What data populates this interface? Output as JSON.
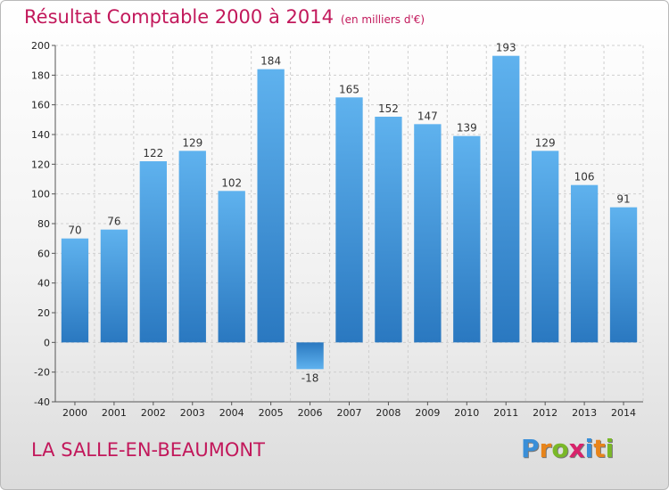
{
  "chart_data": {
    "type": "bar",
    "title": "Résultat Comptable 2000 à 2014",
    "subtitle": "(en milliers d'€)",
    "categories": [
      "2000",
      "2001",
      "2002",
      "2003",
      "2004",
      "2005",
      "2006",
      "2007",
      "2008",
      "2009",
      "2010",
      "2011",
      "2012",
      "2013",
      "2014"
    ],
    "values": [
      70,
      76,
      122,
      129,
      102,
      184,
      -18,
      165,
      152,
      147,
      139,
      193,
      129,
      106,
      91
    ],
    "value_labels": [
      "70",
      "76",
      "122",
      "129",
      "102",
      "184",
      "-18",
      "165",
      "152",
      "147",
      "139",
      "193",
      "129",
      "106",
      "91"
    ],
    "ylim": [
      -40,
      200
    ],
    "yticks": [
      "-40",
      "-20",
      "0",
      "20",
      "40",
      "60",
      "80",
      "100",
      "120",
      "140",
      "160",
      "180",
      "200"
    ],
    "grid": true,
    "bar_color": "#4a9fe0"
  },
  "footer": {
    "city": "LA SALLE-EN-BEAUMONT",
    "logo_letters": [
      "P",
      "r",
      "o",
      "x",
      "i",
      "t",
      "i"
    ],
    "logo_colors": [
      "#3a8fd8",
      "#e8841a",
      "#7ab828",
      "#d8236b",
      "#3a8fd8",
      "#e8841a",
      "#7ab828"
    ]
  }
}
